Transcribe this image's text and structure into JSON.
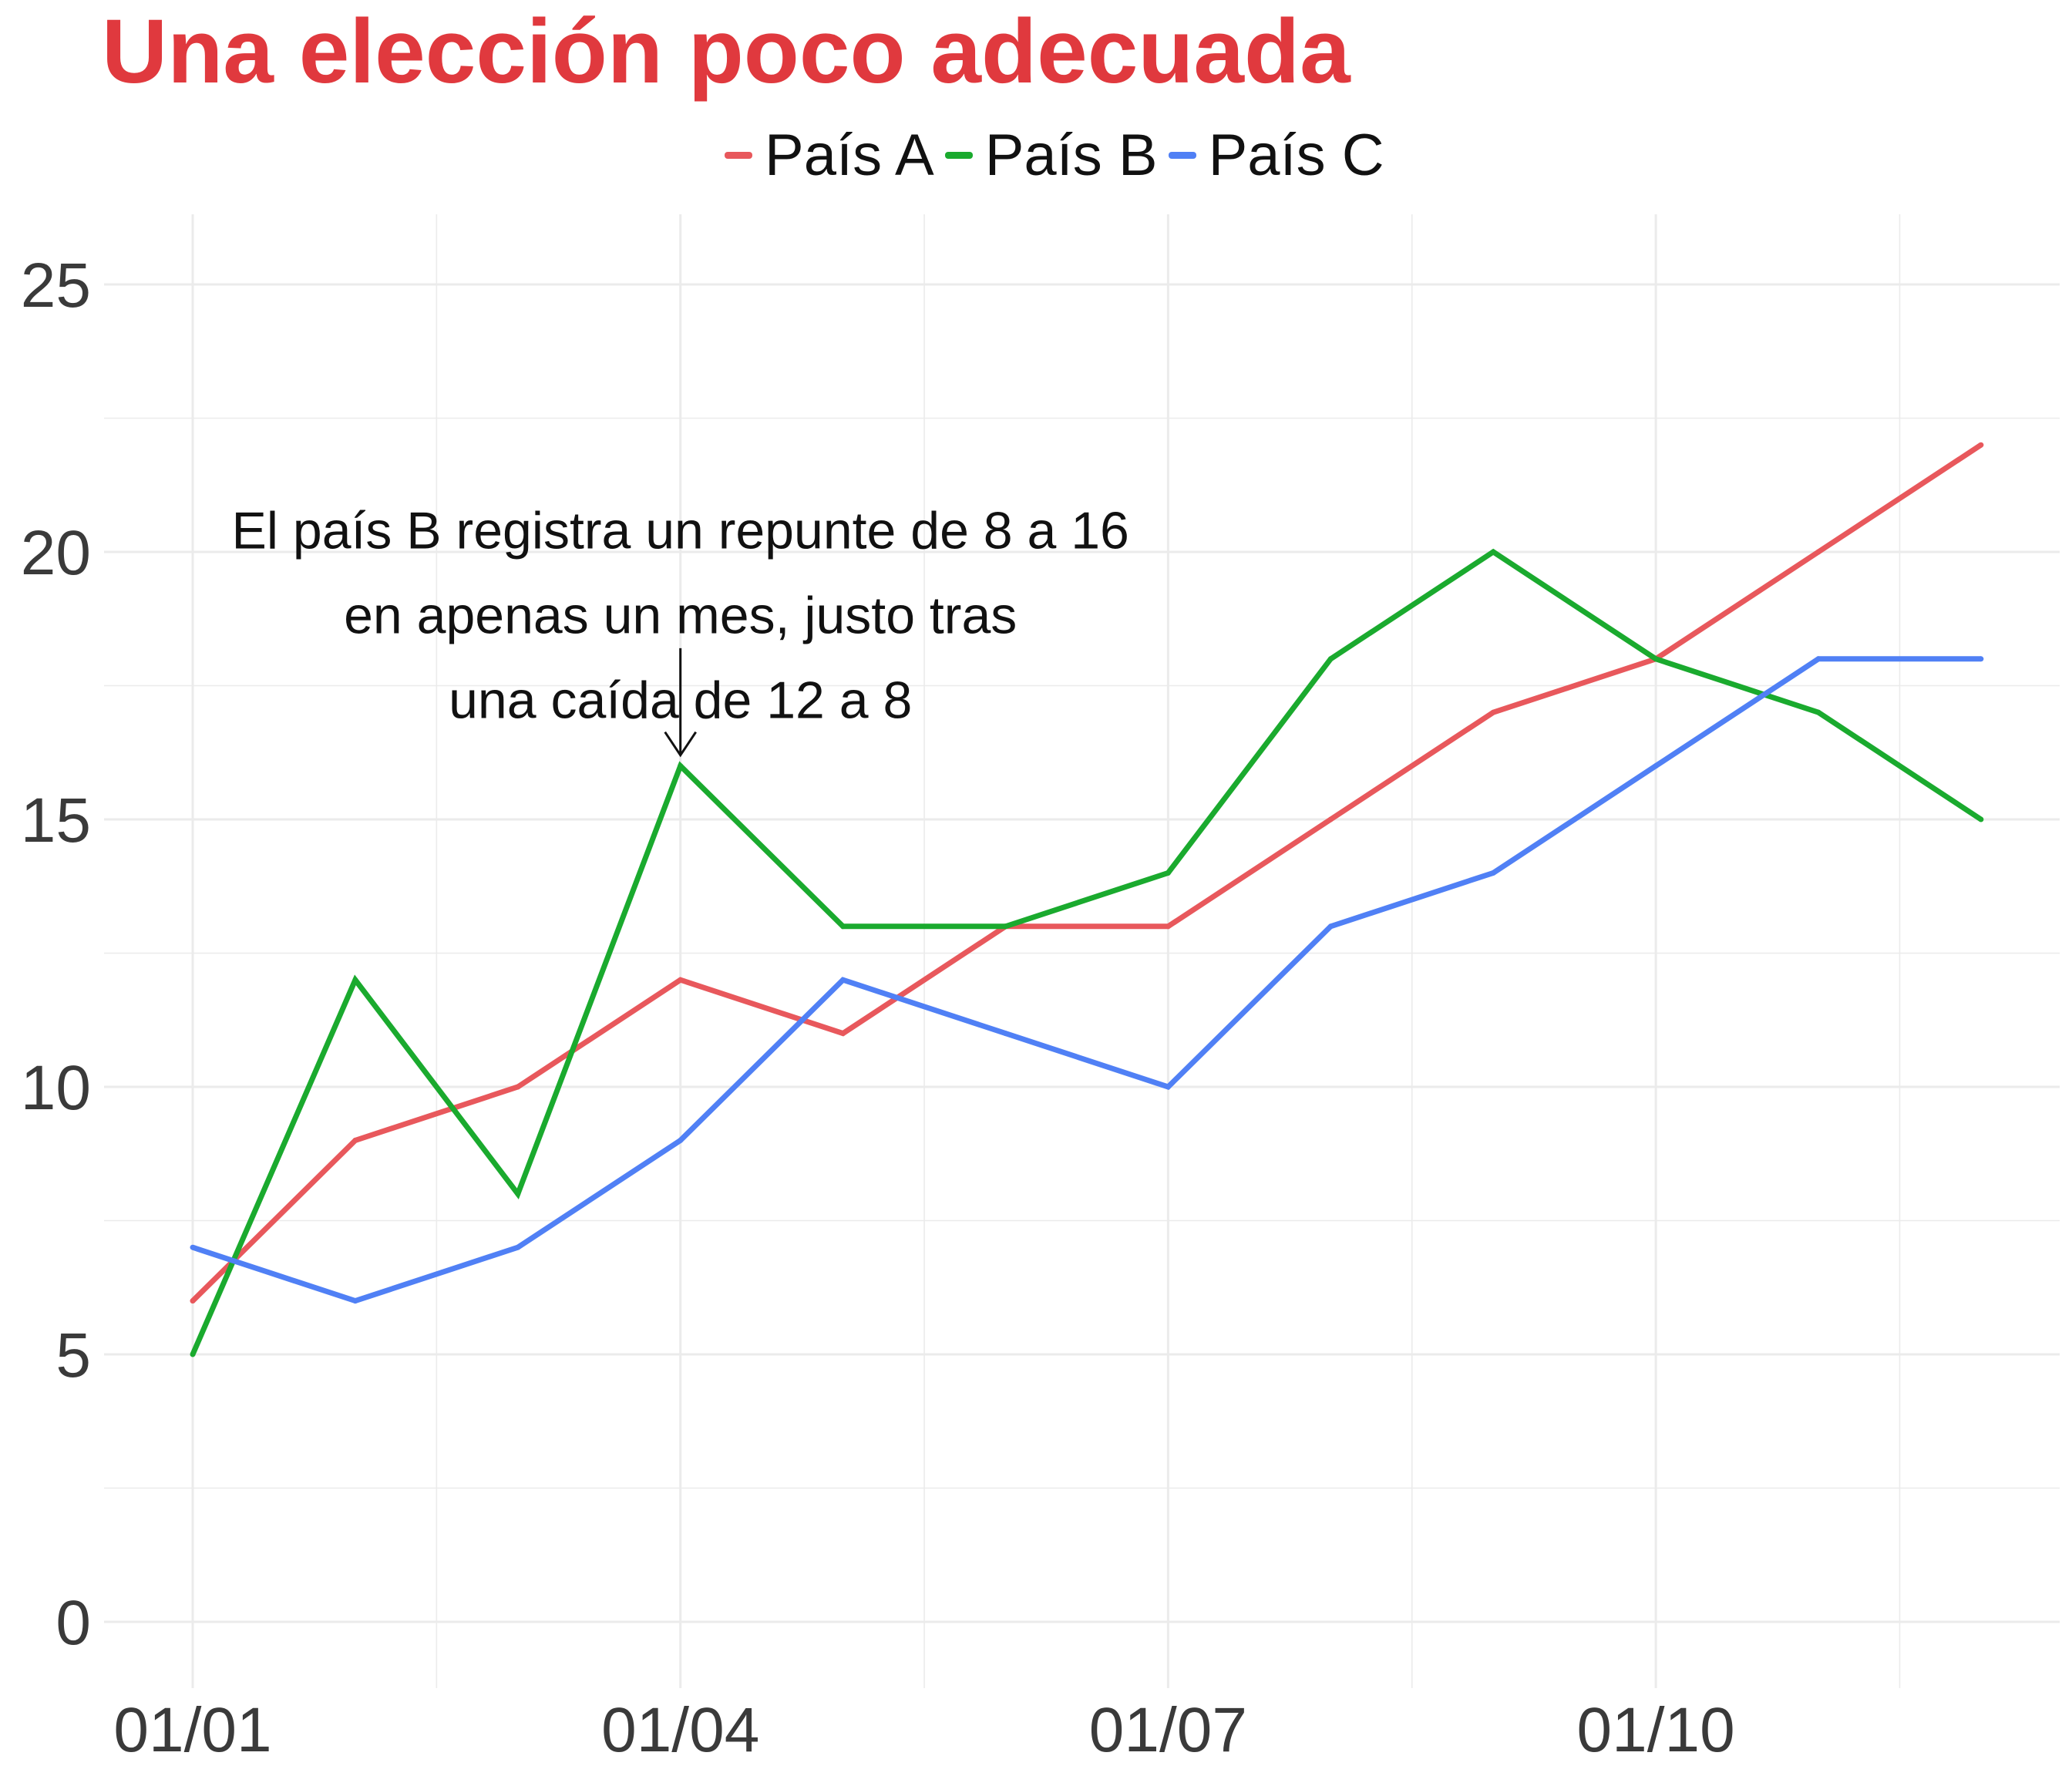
{
  "title": "Una elección poco adecuada",
  "colors": {
    "title": "#e0393e",
    "grid": "#ebebeb",
    "axis_text": "#3a3a3a"
  },
  "chart_data": {
    "type": "line",
    "title": "Una elección poco adecuada",
    "xlabel": "",
    "ylabel": "",
    "x": [
      "01/01",
      "01/02",
      "01/03",
      "01/04",
      "01/05",
      "01/06",
      "01/07",
      "01/08",
      "01/09",
      "01/10",
      "01/11",
      "01/12"
    ],
    "x_tick_labels": [
      "01/01",
      "01/04",
      "01/07",
      "01/10"
    ],
    "y_ticks": [
      0,
      5,
      10,
      15,
      20,
      25
    ],
    "ylim": [
      -1.25,
      26.3
    ],
    "grid": true,
    "legend_position": "top",
    "series": [
      {
        "name": "País A",
        "color": "#e8585c",
        "values": [
          6,
          9,
          10,
          12,
          11,
          13,
          13,
          15,
          17,
          18,
          20,
          22
        ]
      },
      {
        "name": "País B",
        "color": "#1aaa2e",
        "values": [
          5,
          12,
          8,
          16,
          13,
          13,
          14,
          18,
          20,
          18,
          17,
          15
        ]
      },
      {
        "name": "País C",
        "color": "#5080f5",
        "values": [
          7,
          6,
          7,
          9,
          12,
          11,
          10,
          13,
          14,
          16,
          18,
          18
        ]
      }
    ],
    "annotation": {
      "lines": [
        "El país B registra un repunte de 8 a 16",
        "en apenas un mes, justo tras",
        "una caída de 12 a 8"
      ],
      "x": "01/04",
      "y_text": 20.5,
      "arrow_from": 18.2,
      "arrow_to": 16.2
    }
  }
}
